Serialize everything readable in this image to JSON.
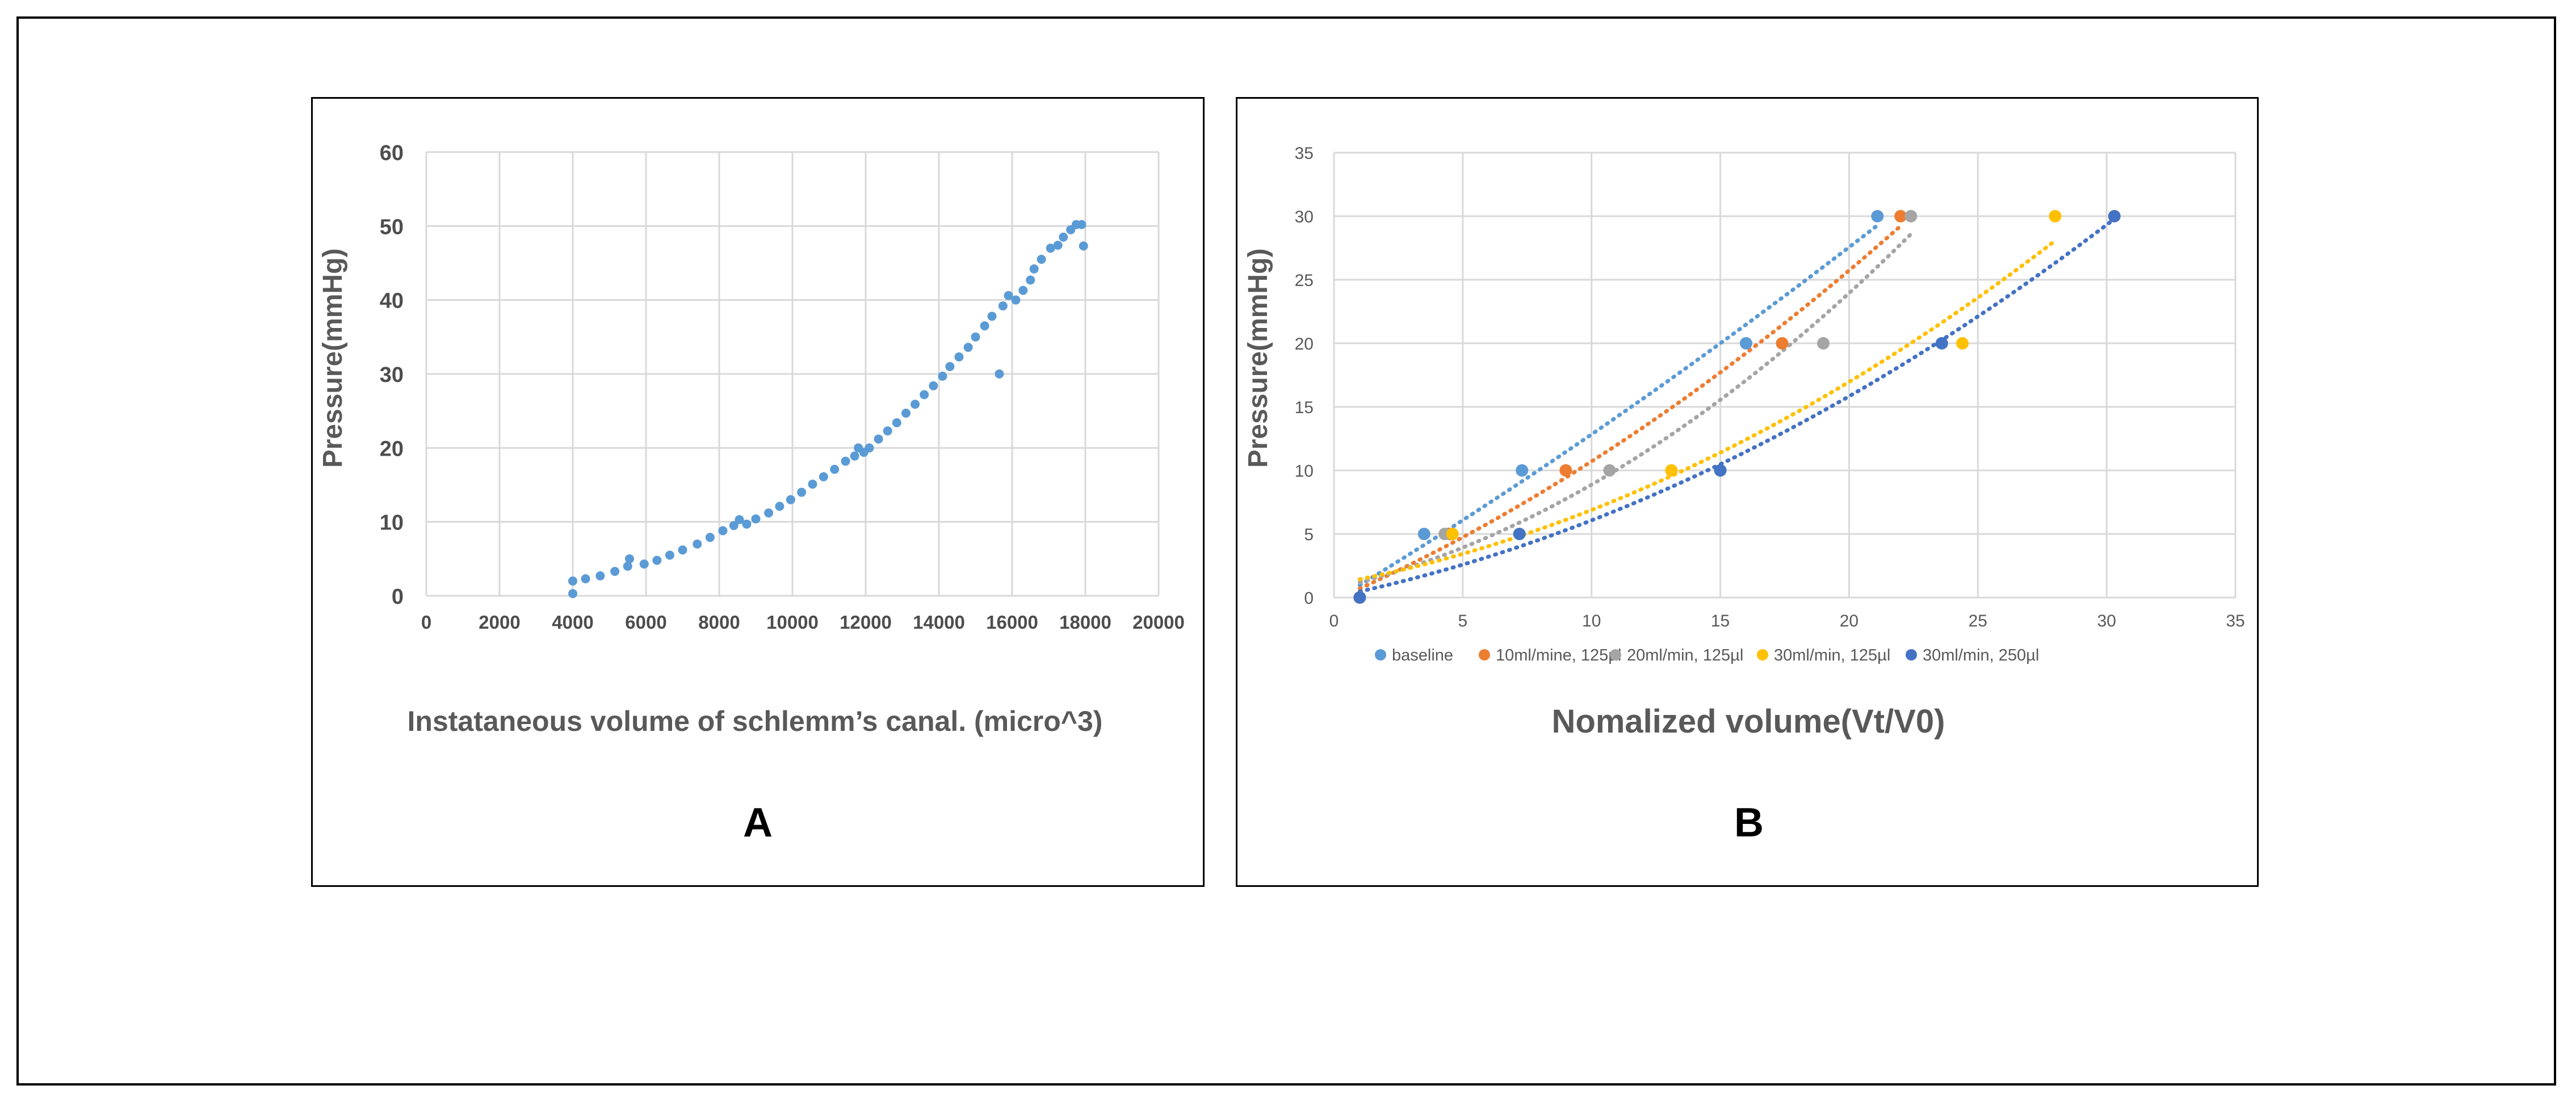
{
  "colors": {
    "frame": "#000000",
    "grid": "#d9d9d9",
    "panel_a_points": "#5b9bd5",
    "baseline": "#5b9bd5",
    "s10": "#ed7d31",
    "s20": "#a5a5a5",
    "s30a": "#ffc000",
    "s30b": "#4472c4"
  },
  "chart_data": [
    {
      "type": "scatter",
      "panel_label": "A",
      "title": "",
      "xlabel": "Instataneous  volume of schlemm’s canal. (micro^3)",
      "ylabel": "Pressure(mmHg)",
      "xlim": [
        0,
        20000
      ],
      "ylim": [
        0,
        60
      ],
      "x_ticks": [
        0,
        2000,
        4000,
        6000,
        8000,
        10000,
        12000,
        14000,
        16000,
        18000,
        20000
      ],
      "y_ticks": [
        0,
        10,
        20,
        30,
        40,
        50,
        60
      ],
      "grid": true,
      "series": [
        {
          "name": "Pressure",
          "x": [
            4000,
            4000,
            4350,
            4750,
            5150,
            5500,
            5550,
            5950,
            6300,
            6650,
            7000,
            7400,
            7750,
            8100,
            8400,
            8550,
            8750,
            9000,
            9350,
            9650,
            9950,
            10250,
            10550,
            10850,
            11150,
            11450,
            11700,
            11800,
            11950,
            12100,
            12350,
            12600,
            12850,
            13100,
            13350,
            13600,
            13850,
            14100,
            14300,
            14550,
            14800,
            15000,
            15250,
            15450,
            15650,
            15750,
            15900,
            16100,
            16300,
            16500,
            16600,
            16800,
            17050,
            17250,
            17400,
            17600,
            17750,
            17900,
            17950
          ],
          "y": [
            0.3,
            2,
            2.3,
            2.7,
            3.3,
            4,
            5,
            4.3,
            4.8,
            5.5,
            6.2,
            7,
            7.9,
            8.8,
            9.5,
            10.3,
            9.7,
            10.4,
            11.2,
            12.1,
            13,
            14,
            15.1,
            16.1,
            17.1,
            18.2,
            18.9,
            20,
            19.4,
            20,
            21.2,
            22.3,
            23.4,
            24.7,
            25.9,
            27.2,
            28.4,
            29.7,
            31,
            32.3,
            33.6,
            35,
            36.5,
            37.8,
            30,
            39.2,
            40.6,
            40,
            41.3,
            42.7,
            44.2,
            45.5,
            47,
            47.4,
            48.5,
            49.5,
            50.2,
            50.2,
            47.3
          ]
        }
      ]
    },
    {
      "type": "scatter",
      "panel_label": "B",
      "title": "",
      "xlabel": "Nomalized volume(Vt/V0)",
      "ylabel": "Pressure(mmHg)",
      "xlim": [
        0,
        35
      ],
      "ylim": [
        0,
        35
      ],
      "x_ticks": [
        0,
        5,
        10,
        15,
        20,
        25,
        30,
        35
      ],
      "y_ticks": [
        0,
        5,
        10,
        15,
        20,
        25,
        30,
        35
      ],
      "grid": true,
      "legend_position": "bottom",
      "trendlines": "dotted polynomial fit per series",
      "series": [
        {
          "name": "baseline",
          "color_key": "baseline",
          "x": [
            1,
            3.5,
            7.3,
            16,
            21.1
          ],
          "y": [
            0,
            5,
            10,
            20,
            30
          ]
        },
        {
          "name": "10ml/mine, 125µl",
          "color_key": "s10",
          "x": [
            1,
            4.5,
            9,
            17.4,
            22
          ],
          "y": [
            0,
            5,
            10,
            20,
            30
          ]
        },
        {
          "name": "20ml/min, 125µl",
          "color_key": "s20",
          "x": [
            1,
            4.3,
            10.7,
            19,
            22.4
          ],
          "y": [
            0,
            5,
            10,
            20,
            30
          ]
        },
        {
          "name": "30ml/min, 125µl",
          "color_key": "s30a",
          "x": [
            1,
            4.6,
            13.1,
            24.4,
            28
          ],
          "y": [
            0,
            5,
            10,
            20,
            30
          ]
        },
        {
          "name": "30ml/min, 250µl",
          "color_key": "s30b",
          "x": [
            1,
            7.2,
            15,
            23.6,
            30.3
          ],
          "y": [
            0,
            5,
            10,
            20,
            30
          ]
        }
      ]
    }
  ]
}
